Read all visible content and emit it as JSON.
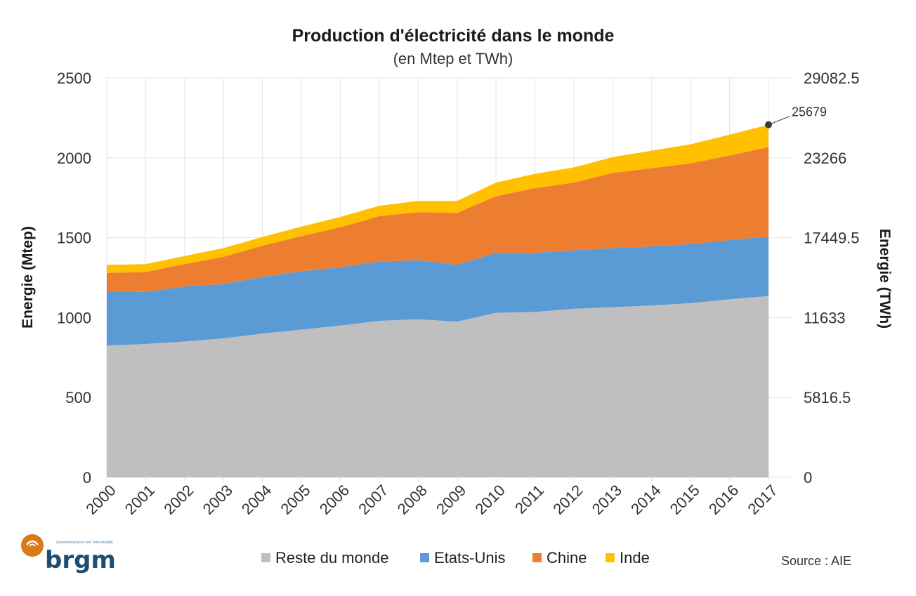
{
  "chart_data": {
    "type": "area",
    "stacked": true,
    "title": "Production d'électricité dans le monde",
    "subtitle": "(en Mtep et TWh)",
    "xlabel": "",
    "ylabel": "Energie (Mtep)",
    "y2label": "Energie (TWh)",
    "ylim": [
      0,
      2500
    ],
    "y2lim": [
      0,
      29082.5
    ],
    "yticks": [
      0,
      500,
      1000,
      1500,
      2000,
      2500
    ],
    "y2ticks": [
      "0",
      "5816.5",
      "11633",
      "17449.5",
      "23266",
      "29082.5"
    ],
    "grid": true,
    "legend_position": "bottom",
    "categories": [
      "2000",
      "2001",
      "2002",
      "2003",
      "2004",
      "2005",
      "2006",
      "2007",
      "2008",
      "2009",
      "2010",
      "2011",
      "2012",
      "2013",
      "2014",
      "2015",
      "2016",
      "2017"
    ],
    "series": [
      {
        "name": "Reste du monde",
        "color": "#bfbfbf",
        "values": [
          825,
          835,
          850,
          870,
          900,
          925,
          950,
          980,
          990,
          975,
          1030,
          1035,
          1055,
          1065,
          1075,
          1090,
          1115,
          1135
        ]
      },
      {
        "name": "Etats-Unis",
        "color": "#5b9bd5",
        "values": [
          340,
          325,
          345,
          340,
          355,
          365,
          365,
          370,
          370,
          355,
          375,
          370,
          365,
          370,
          370,
          370,
          370,
          372
        ]
      },
      {
        "name": "Chine",
        "color": "#ed7d31",
        "values": [
          115,
          125,
          140,
          170,
          195,
          220,
          250,
          285,
          300,
          325,
          355,
          405,
          425,
          470,
          490,
          505,
          530,
          560
        ]
      },
      {
        "name": "Inde",
        "color": "#ffc000",
        "values": [
          50,
          50,
          50,
          55,
          55,
          60,
          65,
          65,
          70,
          75,
          85,
          90,
          95,
          100,
          110,
          120,
          130,
          140
        ]
      }
    ],
    "annotations": [
      {
        "category": "2017",
        "value_mtep": 2207,
        "label": "25679"
      }
    ]
  },
  "logo": {
    "name": "brgm",
    "tagline": "Géosciences pour une Terre durable",
    "color": "#1d4e73",
    "accent": "#d97a1a"
  },
  "source": "Source : AIE"
}
